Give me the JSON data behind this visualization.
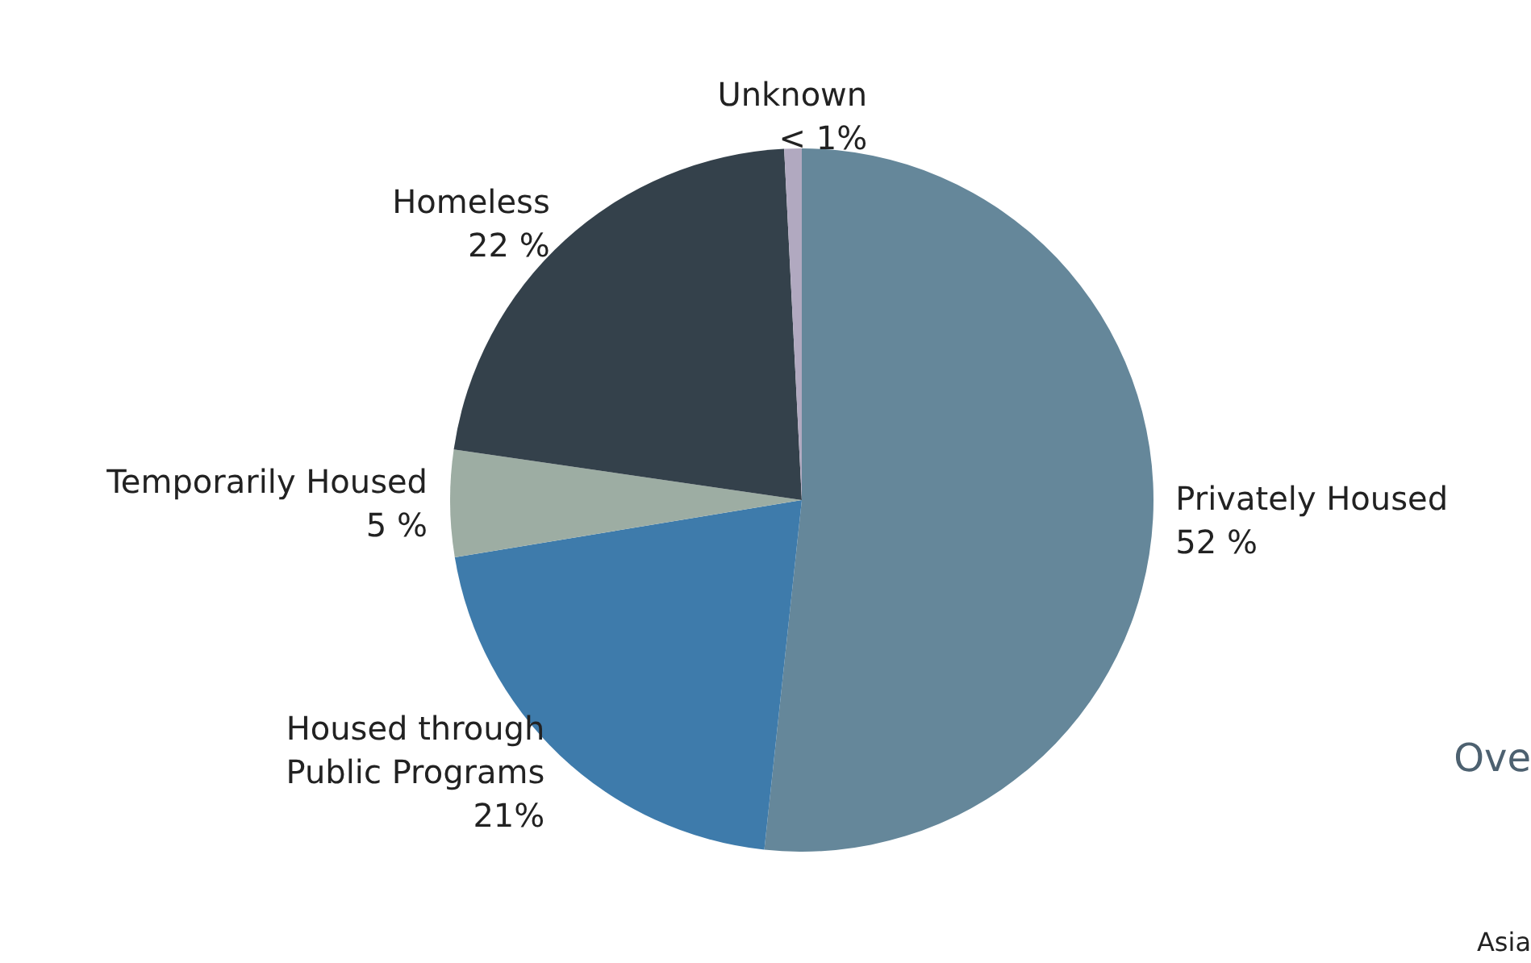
{
  "chart_data": {
    "type": "pie",
    "categories": [
      "Privately Housed",
      "Housed through\nPublic Programs",
      "Temporarily Housed",
      "Homeless",
      "Unknown"
    ],
    "values": [
      51.7,
      20.7,
      4.9,
      21.9,
      0.8
    ],
    "value_labels": [
      "52 %",
      "21%",
      "5 %",
      "22 %",
      "< 1%"
    ],
    "colors": [
      "#65879a",
      "#3e7bab",
      "#9dada3",
      "#34414b",
      "#b1a9c0"
    ],
    "annotations": [
      "Ove",
      "Asia"
    ],
    "legend": false
  }
}
